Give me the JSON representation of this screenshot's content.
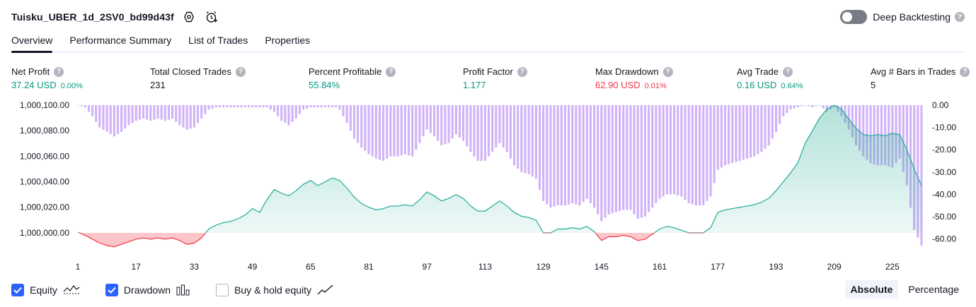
{
  "header": {
    "title": "Tuisku_UBER_1d_2SV0_bd99d43f",
    "settings_icon": "settings-gear-icon",
    "alert_icon": "add-alert-clock-icon"
  },
  "deep_backtesting": {
    "label": "Deep Backtesting",
    "enabled": false,
    "help": "?"
  },
  "tabs": [
    {
      "label": "Overview",
      "active": true
    },
    {
      "label": "Performance Summary",
      "active": false
    },
    {
      "label": "List of Trades",
      "active": false
    },
    {
      "label": "Properties",
      "active": false
    }
  ],
  "metrics": {
    "net_profit": {
      "label": "Net Profit",
      "value": "37.24 USD",
      "pct": "0.00%",
      "help": "?"
    },
    "total_closed_trades": {
      "label": "Total Closed Trades",
      "value": "231",
      "help": "?"
    },
    "percent_profitable": {
      "label": "Percent Profitable",
      "value": "55.84%",
      "help": "?"
    },
    "profit_factor": {
      "label": "Profit Factor",
      "value": "1.177",
      "help": "?"
    },
    "max_drawdown": {
      "label": "Max Drawdown",
      "value": "62.90 USD",
      "pct": "0.01%",
      "help": "?"
    },
    "avg_trade": {
      "label": "Avg Trade",
      "value": "0.16 USD",
      "pct": "0.64%",
      "help": "?"
    },
    "avg_bars": {
      "label": "Avg # Bars in Trades",
      "value": "5",
      "help": "?"
    }
  },
  "chart_data": {
    "type": "area",
    "title": "",
    "x_ticks": [
      "1",
      "17",
      "33",
      "49",
      "65",
      "81",
      "97",
      "113",
      "129",
      "145",
      "161",
      "177",
      "193",
      "209",
      "225"
    ],
    "xlim": [
      1,
      233
    ],
    "y_left_ticks": [
      "1,000,100.00",
      "1,000,080.00",
      "1,000,060.00",
      "1,000,040.00",
      "1,000,020.00",
      "1,000,000.00"
    ],
    "y_left_lim": [
      999990,
      1000100
    ],
    "y_right_ticks": [
      "0.00",
      "-10.00",
      "-20.00",
      "-30.00",
      "-40.00",
      "-50.00",
      "-60.00"
    ],
    "y_right_lim": [
      -63,
      0
    ],
    "equity_baseline": 1000000,
    "series": [
      {
        "name": "Equity",
        "kind": "line-area",
        "color_positive": "#22ab94",
        "color_negative": "#f23645",
        "points": [
          [
            1,
            1000000.5
          ],
          [
            3,
            999998
          ],
          [
            5,
            999995
          ],
          [
            7,
            999992
          ],
          [
            9,
            999990
          ],
          [
            11,
            999989
          ],
          [
            13,
            999991
          ],
          [
            15,
            999993
          ],
          [
            17,
            999995
          ],
          [
            19,
            999996
          ],
          [
            21,
            999995
          ],
          [
            23,
            999996
          ],
          [
            25,
            999995
          ],
          [
            27,
            999996
          ],
          [
            29,
            999994
          ],
          [
            31,
            999991
          ],
          [
            33,
            999992
          ],
          [
            35,
            999996
          ],
          [
            37,
            1000003
          ],
          [
            39,
            1000006
          ],
          [
            41,
            1000008
          ],
          [
            43,
            1000009
          ],
          [
            45,
            1000011
          ],
          [
            47,
            1000014
          ],
          [
            49,
            1000019
          ],
          [
            51,
            1000016
          ],
          [
            53,
            1000026
          ],
          [
            55,
            1000034
          ],
          [
            57,
            1000031
          ],
          [
            59,
            1000029
          ],
          [
            61,
            1000033
          ],
          [
            63,
            1000038
          ],
          [
            65,
            1000041
          ],
          [
            67,
            1000037
          ],
          [
            69,
            1000040
          ],
          [
            71,
            1000043
          ],
          [
            73,
            1000041
          ],
          [
            75,
            1000035
          ],
          [
            77,
            1000028
          ],
          [
            79,
            1000023
          ],
          [
            81,
            1000020
          ],
          [
            83,
            1000018
          ],
          [
            85,
            1000019
          ],
          [
            87,
            1000021
          ],
          [
            89,
            1000021
          ],
          [
            91,
            1000022
          ],
          [
            93,
            1000021
          ],
          [
            95,
            1000026
          ],
          [
            97,
            1000032
          ],
          [
            99,
            1000029
          ],
          [
            101,
            1000025
          ],
          [
            103,
            1000027
          ],
          [
            105,
            1000030
          ],
          [
            107,
            1000027
          ],
          [
            109,
            1000021
          ],
          [
            111,
            1000017
          ],
          [
            113,
            1000017
          ],
          [
            115,
            1000021
          ],
          [
            117,
            1000025
          ],
          [
            119,
            1000021
          ],
          [
            121,
            1000016
          ],
          [
            123,
            1000013
          ],
          [
            125,
            1000012
          ],
          [
            127,
            1000010
          ],
          [
            129,
            1000000
          ],
          [
            131,
            1000000
          ],
          [
            133,
            1000003
          ],
          [
            135,
            1000003
          ],
          [
            137,
            1000004
          ],
          [
            139,
            1000003
          ],
          [
            141,
            1000005
          ],
          [
            143,
            1000001
          ],
          [
            145,
            999994
          ],
          [
            147,
            999997
          ],
          [
            149,
            999997
          ],
          [
            151,
            999998
          ],
          [
            153,
            999997
          ],
          [
            155,
            999994
          ],
          [
            157,
            999995
          ],
          [
            159,
            999999
          ],
          [
            161,
            1000003
          ],
          [
            163,
            1000005
          ],
          [
            165,
            1000004
          ],
          [
            167,
            1000002
          ],
          [
            169,
            1000000
          ],
          [
            171,
            1000000
          ],
          [
            173,
            1000000
          ],
          [
            175,
            1000004
          ],
          [
            177,
            1000016
          ],
          [
            179,
            1000018
          ],
          [
            181,
            1000019
          ],
          [
            183,
            1000020
          ],
          [
            185,
            1000021
          ],
          [
            187,
            1000022
          ],
          [
            189,
            1000024
          ],
          [
            191,
            1000027
          ],
          [
            193,
            1000033
          ],
          [
            195,
            1000040
          ],
          [
            197,
            1000047
          ],
          [
            199,
            1000055
          ],
          [
            201,
            1000070
          ],
          [
            203,
            1000080
          ],
          [
            205,
            1000090
          ],
          [
            207,
            1000097
          ],
          [
            209,
            1000100
          ],
          [
            211,
            1000097
          ],
          [
            213,
            1000089
          ],
          [
            215,
            1000082
          ],
          [
            217,
            1000077
          ],
          [
            219,
            1000076
          ],
          [
            221,
            1000077
          ],
          [
            223,
            1000076
          ],
          [
            225,
            1000078
          ],
          [
            227,
            1000077
          ],
          [
            229,
            1000065
          ],
          [
            231,
            1000050
          ],
          [
            233,
            1000037
          ]
        ]
      },
      {
        "name": "Drawdown",
        "kind": "bars",
        "color": "#d1b3f7",
        "keyframes": [
          [
            1,
            0
          ],
          [
            3,
            -1
          ],
          [
            5,
            -5
          ],
          [
            7,
            -10
          ],
          [
            9,
            -12
          ],
          [
            11,
            -14
          ],
          [
            13,
            -12
          ],
          [
            15,
            -9
          ],
          [
            17,
            -7
          ],
          [
            19,
            -6
          ],
          [
            21,
            -7
          ],
          [
            23,
            -6
          ],
          [
            25,
            -7
          ],
          [
            27,
            -6
          ],
          [
            29,
            -9
          ],
          [
            31,
            -11
          ],
          [
            33,
            -10
          ],
          [
            35,
            -6
          ],
          [
            37,
            -2
          ],
          [
            39,
            -1
          ],
          [
            41,
            -1
          ],
          [
            43,
            -1
          ],
          [
            45,
            -1
          ],
          [
            49,
            -1
          ],
          [
            53,
            -1
          ],
          [
            55,
            -3
          ],
          [
            57,
            -7
          ],
          [
            59,
            -9
          ],
          [
            61,
            -6
          ],
          [
            63,
            -2
          ],
          [
            65,
            -1
          ],
          [
            69,
            -1
          ],
          [
            72,
            -1
          ],
          [
            73,
            -2
          ],
          [
            75,
            -8
          ],
          [
            77,
            -15
          ],
          [
            79,
            -19
          ],
          [
            81,
            -22
          ],
          [
            83,
            -24
          ],
          [
            85,
            -25
          ],
          [
            87,
            -23
          ],
          [
            89,
            -23
          ],
          [
            91,
            -22
          ],
          [
            93,
            -23
          ],
          [
            95,
            -17
          ],
          [
            97,
            -11
          ],
          [
            99,
            -14
          ],
          [
            101,
            -18
          ],
          [
            103,
            -17
          ],
          [
            105,
            -13
          ],
          [
            107,
            -16
          ],
          [
            109,
            -21
          ],
          [
            111,
            -25
          ],
          [
            113,
            -25
          ],
          [
            115,
            -21
          ],
          [
            117,
            -17
          ],
          [
            119,
            -21
          ],
          [
            121,
            -27
          ],
          [
            123,
            -30
          ],
          [
            125,
            -31
          ],
          [
            127,
            -33
          ],
          [
            129,
            -43
          ],
          [
            131,
            -46
          ],
          [
            133,
            -45
          ],
          [
            135,
            -45
          ],
          [
            137,
            -44
          ],
          [
            139,
            -45
          ],
          [
            141,
            -42
          ],
          [
            143,
            -46
          ],
          [
            145,
            -52
          ],
          [
            147,
            -49
          ],
          [
            149,
            -48
          ],
          [
            151,
            -47
          ],
          [
            153,
            -47
          ],
          [
            155,
            -51
          ],
          [
            157,
            -50
          ],
          [
            159,
            -46
          ],
          [
            161,
            -42
          ],
          [
            163,
            -40
          ],
          [
            165,
            -40
          ],
          [
            167,
            -41
          ],
          [
            169,
            -44
          ],
          [
            171,
            -45
          ],
          [
            173,
            -45
          ],
          [
            175,
            -41
          ],
          [
            177,
            -29
          ],
          [
            179,
            -27
          ],
          [
            181,
            -26
          ],
          [
            183,
            -25
          ],
          [
            185,
            -24
          ],
          [
            187,
            -23
          ],
          [
            189,
            -21
          ],
          [
            191,
            -18
          ],
          [
            193,
            -12
          ],
          [
            195,
            -5
          ],
          [
            197,
            -2
          ],
          [
            199,
            -1
          ],
          [
            201,
            0
          ],
          [
            203,
            -1
          ],
          [
            205,
            0
          ],
          [
            207,
            -3
          ],
          [
            209,
            -1
          ],
          [
            211,
            -5
          ],
          [
            213,
            -11
          ],
          [
            215,
            -18
          ],
          [
            217,
            -23
          ],
          [
            219,
            -26
          ],
          [
            221,
            -27
          ],
          [
            223,
            -27
          ],
          [
            225,
            -28
          ],
          [
            227,
            -24
          ],
          [
            229,
            -36
          ],
          [
            231,
            -56
          ],
          [
            233,
            -63
          ]
        ]
      }
    ]
  },
  "legend": {
    "equity": {
      "label": "Equity",
      "checked": true
    },
    "drawdown": {
      "label": "Drawdown",
      "checked": true
    },
    "buy_hold": {
      "label": "Buy & hold equity",
      "checked": false
    }
  },
  "view_mode": {
    "absolute": {
      "label": "Absolute",
      "active": true
    },
    "percentage": {
      "label": "Percentage",
      "active": false
    }
  }
}
